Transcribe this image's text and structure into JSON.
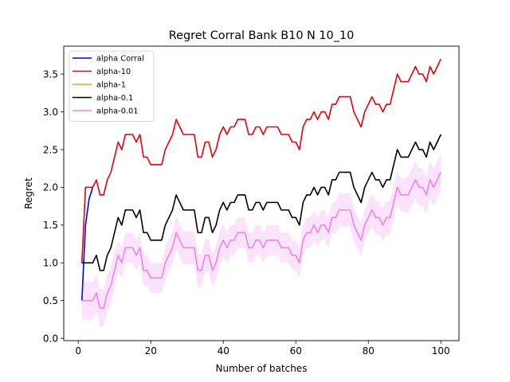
{
  "chart_data": {
    "type": "line",
    "title": "Regret Corral Bank B10 N 10_10",
    "xlabel": "Number of batches",
    "ylabel": "Regret",
    "xlim": [
      -4.0,
      105.0
    ],
    "ylim": [
      -0.03,
      3.87
    ],
    "xticks": [
      0,
      20,
      40,
      60,
      80,
      100
    ],
    "xtick_labels": [
      "0",
      "20",
      "40",
      "60",
      "80",
      "100"
    ],
    "yticks": [
      0.0,
      0.5,
      1.0,
      1.5,
      2.0,
      2.5,
      3.0,
      3.5
    ],
    "ytick_labels": [
      "0.0",
      "0.5",
      "1.0",
      "1.5",
      "2.0",
      "2.5",
      "3.0",
      "3.5"
    ],
    "grid": false,
    "legend": "upper-left",
    "series": [
      {
        "name": "alpha Corral",
        "color": "#0000ff",
        "x": [
          1,
          2,
          3,
          4
        ],
        "y": [
          0.5,
          1.5,
          1.85,
          2.0
        ]
      },
      {
        "name": "alpha-10",
        "color": "#e8000b",
        "x": [
          1,
          2,
          3,
          4,
          5,
          6,
          7,
          8,
          9,
          10,
          11,
          12,
          13,
          14,
          15,
          16,
          17,
          18,
          19,
          20,
          21,
          22,
          23,
          24,
          25,
          26,
          27,
          28,
          29,
          30,
          31,
          32,
          33,
          34,
          35,
          36,
          37,
          38,
          39,
          40,
          41,
          42,
          43,
          44,
          45,
          46,
          47,
          48,
          49,
          50,
          51,
          52,
          53,
          54,
          55,
          56,
          57,
          58,
          59,
          60,
          61,
          62,
          63,
          64,
          65,
          66,
          67,
          68,
          69,
          70,
          71,
          72,
          73,
          74,
          75,
          76,
          77,
          78,
          79,
          80,
          81,
          82,
          83,
          84,
          85,
          86,
          87,
          88,
          89,
          90,
          91,
          92,
          93,
          94,
          95,
          96,
          97,
          98,
          99,
          100
        ],
        "y": [
          1.0,
          2.0,
          2.0,
          2.0,
          2.1,
          1.9,
          1.9,
          2.1,
          2.2,
          2.4,
          2.6,
          2.5,
          2.7,
          2.7,
          2.7,
          2.6,
          2.7,
          2.4,
          2.4,
          2.3,
          2.3,
          2.3,
          2.3,
          2.5,
          2.6,
          2.7,
          2.9,
          2.8,
          2.7,
          2.7,
          2.7,
          2.7,
          2.4,
          2.4,
          2.6,
          2.6,
          2.4,
          2.5,
          2.7,
          2.8,
          2.7,
          2.8,
          2.8,
          2.9,
          2.9,
          2.9,
          2.7,
          2.7,
          2.8,
          2.8,
          2.7,
          2.8,
          2.8,
          2.8,
          2.8,
          2.7,
          2.7,
          2.7,
          2.6,
          2.6,
          2.5,
          2.8,
          2.9,
          2.9,
          3.0,
          2.9,
          3.0,
          3.0,
          2.9,
          3.1,
          3.1,
          3.2,
          3.2,
          3.2,
          3.2,
          3.0,
          2.9,
          2.8,
          3.0,
          3.1,
          3.2,
          3.1,
          3.1,
          3.0,
          3.1,
          3.1,
          3.3,
          3.5,
          3.4,
          3.4,
          3.4,
          3.5,
          3.6,
          3.5,
          3.5,
          3.4,
          3.6,
          3.5,
          3.6,
          3.7
        ]
      },
      {
        "name": "alpha-1",
        "color": "#ff9f1c",
        "x": [],
        "y": []
      },
      {
        "name": "alpha-0.1",
        "color": "#000000",
        "x": [
          1,
          2,
          3,
          4,
          5,
          6,
          7,
          8,
          9,
          10,
          11,
          12,
          13,
          14,
          15,
          16,
          17,
          18,
          19,
          20,
          21,
          22,
          23,
          24,
          25,
          26,
          27,
          28,
          29,
          30,
          31,
          32,
          33,
          34,
          35,
          36,
          37,
          38,
          39,
          40,
          41,
          42,
          43,
          44,
          45,
          46,
          47,
          48,
          49,
          50,
          51,
          52,
          53,
          54,
          55,
          56,
          57,
          58,
          59,
          60,
          61,
          62,
          63,
          64,
          65,
          66,
          67,
          68,
          69,
          70,
          71,
          72,
          73,
          74,
          75,
          76,
          77,
          78,
          79,
          80,
          81,
          82,
          83,
          84,
          85,
          86,
          87,
          88,
          89,
          90,
          91,
          92,
          93,
          94,
          95,
          96,
          97,
          98,
          99,
          100
        ],
        "y": [
          1.0,
          1.0,
          1.0,
          1.0,
          1.1,
          0.9,
          0.9,
          1.1,
          1.2,
          1.4,
          1.6,
          1.5,
          1.7,
          1.7,
          1.7,
          1.6,
          1.7,
          1.4,
          1.4,
          1.3,
          1.3,
          1.3,
          1.3,
          1.5,
          1.6,
          1.7,
          1.9,
          1.8,
          1.7,
          1.7,
          1.7,
          1.7,
          1.4,
          1.4,
          1.6,
          1.6,
          1.4,
          1.5,
          1.7,
          1.8,
          1.7,
          1.8,
          1.8,
          1.9,
          1.9,
          1.9,
          1.7,
          1.7,
          1.8,
          1.8,
          1.7,
          1.8,
          1.8,
          1.8,
          1.8,
          1.7,
          1.7,
          1.7,
          1.6,
          1.6,
          1.5,
          1.8,
          1.9,
          1.9,
          2.0,
          1.9,
          2.0,
          2.0,
          1.9,
          2.1,
          2.1,
          2.2,
          2.2,
          2.2,
          2.2,
          2.0,
          1.9,
          1.8,
          2.0,
          2.1,
          2.2,
          2.1,
          2.1,
          2.0,
          2.1,
          2.1,
          2.3,
          2.5,
          2.4,
          2.4,
          2.4,
          2.5,
          2.6,
          2.5,
          2.5,
          2.4,
          2.6,
          2.5,
          2.6,
          2.7
        ]
      },
      {
        "name": "alpha-0.01",
        "color": "#ee82ee",
        "x": [
          1,
          2,
          3,
          4,
          5,
          6,
          7,
          8,
          9,
          10,
          11,
          12,
          13,
          14,
          15,
          16,
          17,
          18,
          19,
          20,
          21,
          22,
          23,
          24,
          25,
          26,
          27,
          28,
          29,
          30,
          31,
          32,
          33,
          34,
          35,
          36,
          37,
          38,
          39,
          40,
          41,
          42,
          43,
          44,
          45,
          46,
          47,
          48,
          49,
          50,
          51,
          52,
          53,
          54,
          55,
          56,
          57,
          58,
          59,
          60,
          61,
          62,
          63,
          64,
          65,
          66,
          67,
          68,
          69,
          70,
          71,
          72,
          73,
          74,
          75,
          76,
          77,
          78,
          79,
          80,
          81,
          82,
          83,
          84,
          85,
          86,
          87,
          88,
          89,
          90,
          91,
          92,
          93,
          94,
          95,
          96,
          97,
          98,
          99,
          100
        ],
        "y": [
          0.5,
          0.5,
          0.5,
          0.5,
          0.6,
          0.4,
          0.4,
          0.6,
          0.7,
          0.9,
          1.1,
          1.0,
          1.2,
          1.2,
          1.2,
          1.1,
          1.2,
          0.9,
          0.9,
          0.8,
          0.8,
          0.8,
          0.8,
          1.0,
          1.1,
          1.2,
          1.4,
          1.3,
          1.2,
          1.2,
          1.2,
          1.2,
          0.9,
          0.9,
          1.1,
          1.1,
          0.9,
          1.0,
          1.2,
          1.3,
          1.2,
          1.3,
          1.3,
          1.4,
          1.4,
          1.4,
          1.2,
          1.2,
          1.3,
          1.3,
          1.2,
          1.3,
          1.3,
          1.3,
          1.3,
          1.2,
          1.2,
          1.2,
          1.1,
          1.1,
          1.0,
          1.3,
          1.4,
          1.4,
          1.5,
          1.4,
          1.5,
          1.5,
          1.4,
          1.6,
          1.6,
          1.7,
          1.7,
          1.7,
          1.7,
          1.5,
          1.4,
          1.3,
          1.5,
          1.6,
          1.7,
          1.6,
          1.6,
          1.5,
          1.6,
          1.6,
          1.8,
          2.0,
          1.9,
          1.9,
          1.9,
          2.0,
          2.1,
          2.0,
          2.0,
          1.9,
          2.1,
          2.0,
          2.1,
          2.2
        ],
        "band_halfwidth": [
          0.25,
          0.25,
          0.25,
          0.25,
          0.25,
          0.25,
          0.25,
          0.25,
          0.25,
          0.25,
          0.2,
          0.2,
          0.2,
          0.2,
          0.2,
          0.2,
          0.2,
          0.2,
          0.2,
          0.2,
          0.2,
          0.2,
          0.2,
          0.22,
          0.22,
          0.22,
          0.22,
          0.22,
          0.22,
          0.22,
          0.22,
          0.22,
          0.22,
          0.22,
          0.22,
          0.22,
          0.22,
          0.22,
          0.22,
          0.22,
          0.2,
          0.2,
          0.2,
          0.2,
          0.2,
          0.2,
          0.2,
          0.2,
          0.2,
          0.2,
          0.2,
          0.2,
          0.2,
          0.2,
          0.2,
          0.2,
          0.2,
          0.2,
          0.2,
          0.2,
          0.2,
          0.2,
          0.2,
          0.2,
          0.2,
          0.2,
          0.2,
          0.2,
          0.2,
          0.2,
          0.22,
          0.22,
          0.22,
          0.22,
          0.22,
          0.22,
          0.22,
          0.22,
          0.22,
          0.22,
          0.22,
          0.22,
          0.22,
          0.22,
          0.22,
          0.22,
          0.22,
          0.22,
          0.22,
          0.22,
          0.25,
          0.25,
          0.25,
          0.25,
          0.25,
          0.25,
          0.25,
          0.25,
          0.25,
          0.25
        ]
      }
    ]
  }
}
